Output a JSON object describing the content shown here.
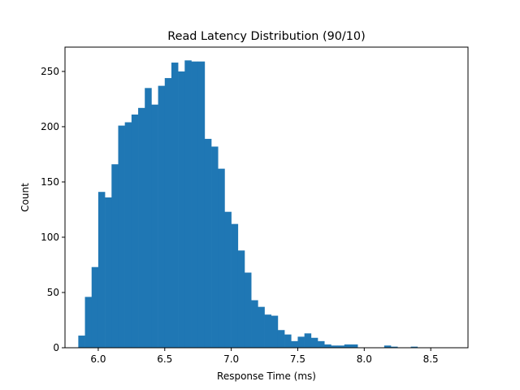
{
  "chart_data": {
    "type": "bar",
    "title": "Read Latency Distribution (90/10)",
    "xlabel": "Response Time (ms)",
    "ylabel": "Count",
    "xlim": [
      5.75,
      8.78
    ],
    "ylim": [
      0,
      272
    ],
    "xticks": [
      6.0,
      6.5,
      7.0,
      7.5,
      8.0,
      8.5
    ],
    "yticks": [
      0,
      50,
      100,
      150,
      200,
      250
    ],
    "grid": false,
    "bar_color": "#1f77b4",
    "bin_start": 5.85,
    "bin_width": 0.05,
    "values": [
      11,
      46,
      73,
      141,
      136,
      166,
      201,
      204,
      211,
      217,
      235,
      220,
      237,
      244,
      258,
      250,
      260,
      259,
      259,
      189,
      182,
      162,
      123,
      112,
      88,
      68,
      43,
      37,
      30,
      29,
      16,
      12,
      6,
      10,
      13,
      9,
      6,
      3,
      2,
      2,
      3,
      3,
      0,
      0,
      0,
      0,
      2,
      1,
      0,
      0,
      1
    ]
  }
}
